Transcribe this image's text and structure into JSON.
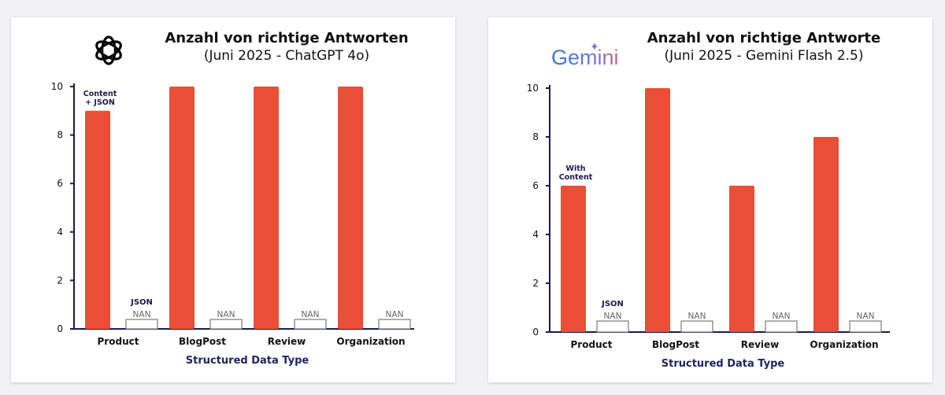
{
  "chart_data": [
    {
      "type": "bar",
      "title": "Anzahl von richtige Antworten",
      "subtitle": "(Juni 2025 - ChatGPT 4o)",
      "xlabel": "Structured Data Type",
      "ylabel": "",
      "ylim": [
        0,
        10
      ],
      "yticks": [
        0,
        2,
        4,
        6,
        8,
        10
      ],
      "categories": [
        "Product",
        "BlogPost",
        "Review",
        "Organization"
      ],
      "series": [
        {
          "values": [
            9,
            10,
            10,
            10
          ],
          "color": "#e84f36"
        },
        {
          "values": [
            null,
            null,
            null,
            null
          ],
          "nan_label": "NAN"
        }
      ],
      "annotations": [
        {
          "text": "Content",
          "category": "Product",
          "series": 0
        },
        {
          "text": "+ JSON",
          "category": "Product",
          "series": 0
        },
        {
          "text": "JSON",
          "category": "Product",
          "series": 1
        }
      ],
      "logo": "openai-logo",
      "grid": false
    },
    {
      "type": "bar",
      "title": "Anzahl von richtige Antworte",
      "subtitle": "(Juni 2025 - Gemini Flash 2.5)",
      "xlabel": "Structured Data Type",
      "ylabel": "",
      "ylim": [
        0,
        10
      ],
      "yticks": [
        0,
        2,
        4,
        6,
        8,
        10
      ],
      "categories": [
        "Product",
        "BlogPost",
        "Review",
        "Organization"
      ],
      "series": [
        {
          "values": [
            6,
            10,
            6,
            8
          ],
          "color": "#e84f36"
        },
        {
          "values": [
            null,
            null,
            null,
            null
          ],
          "nan_label": "NAN"
        }
      ],
      "annotations": [
        {
          "text": "With",
          "category": "Product",
          "series": 0
        },
        {
          "text": "Content",
          "category": "Product",
          "series": 0
        },
        {
          "text": "JSON",
          "category": "Product",
          "series": 1
        }
      ],
      "logo": "gemini-logo",
      "logo_text": "Gemini",
      "grid": false
    }
  ],
  "colors": {
    "bar": "#e84f36",
    "axis": "#1b1a4d",
    "xlabel": "#1f2466",
    "nan_box": "#7a7a7a"
  }
}
